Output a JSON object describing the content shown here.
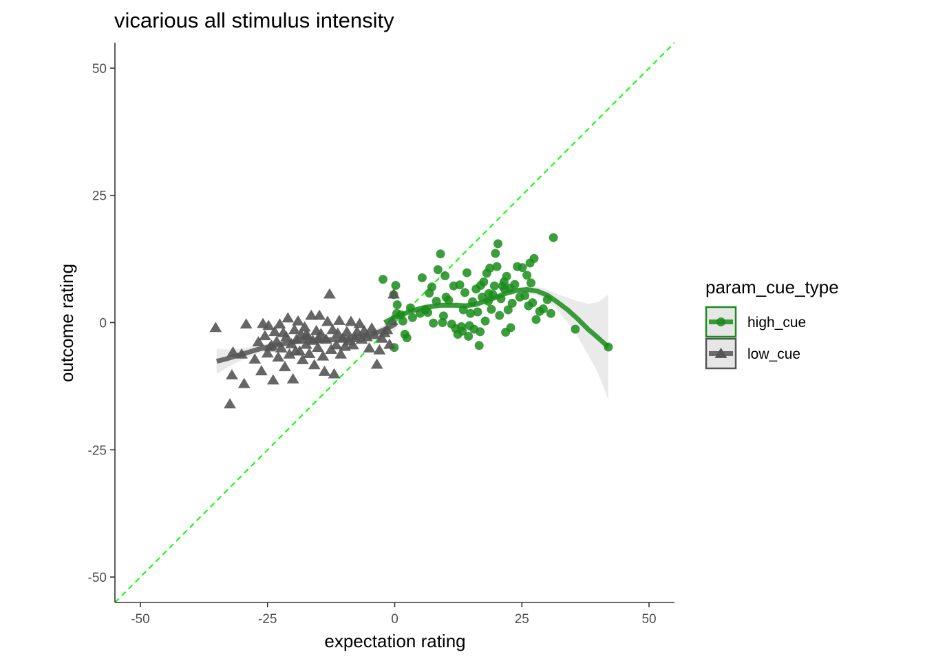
{
  "chart_data": {
    "type": "scatter",
    "title": "vicarious all stimulus intensity",
    "xlabel": "expectation rating",
    "ylabel": "outcome rating",
    "xlim": [
      -55,
      55
    ],
    "ylim": [
      -55,
      55
    ],
    "x_ticks": [
      -50,
      -25,
      0,
      25,
      50
    ],
    "y_ticks": [
      -50,
      -25,
      0,
      25,
      50
    ],
    "x_tick_labels": [
      "-50",
      "-25",
      "0",
      "25",
      "50"
    ],
    "y_tick_labels": [
      "-50",
      "-25",
      "0",
      "25",
      "50"
    ],
    "grid": false,
    "legend": {
      "title": "param_cue_type",
      "position": "right"
    },
    "identity_line": {
      "type": "dashed",
      "color": "#00ff00",
      "slope": 1,
      "intercept": 0
    },
    "series": [
      {
        "name": "high_cue",
        "marker": "circle",
        "color": "#1a8c1a",
        "points": [
          [
            -2.3,
            8.5
          ],
          [
            0.2,
            7.3
          ],
          [
            -0.2,
            5.5
          ],
          [
            0.5,
            3.5
          ],
          [
            0.4,
            1.8
          ],
          [
            1.2,
            1.5
          ],
          [
            1.6,
            0.3
          ],
          [
            2.0,
            -2.3
          ],
          [
            2.4,
            -3.0
          ],
          [
            3.1,
            2.9
          ],
          [
            3.5,
            1.0
          ],
          [
            5.0,
            1.8
          ],
          [
            5.4,
            8.8
          ],
          [
            6.0,
            2.5
          ],
          [
            6.8,
            5.8
          ],
          [
            7.3,
            7.0
          ],
          [
            7.6,
            -0.1
          ],
          [
            8.2,
            4.2
          ],
          [
            8.5,
            10.4
          ],
          [
            9.0,
            13.5
          ],
          [
            9.4,
            0.0
          ],
          [
            9.9,
            9.2
          ],
          [
            10.1,
            5.0
          ],
          [
            10.6,
            4.4
          ],
          [
            11.2,
            -0.3
          ],
          [
            11.6,
            7.2
          ],
          [
            12.0,
            -1.2
          ],
          [
            12.4,
            -2.3
          ],
          [
            12.8,
            7.4
          ],
          [
            13.1,
            -0.8
          ],
          [
            13.5,
            2.5
          ],
          [
            13.8,
            5.9
          ],
          [
            14.2,
            9.8
          ],
          [
            14.5,
            -2.7
          ],
          [
            14.9,
            1.8
          ],
          [
            15.3,
            4.1
          ],
          [
            15.6,
            -1.3
          ],
          [
            16.0,
            6.6
          ],
          [
            16.3,
            2.1
          ],
          [
            16.6,
            -4.5
          ],
          [
            16.9,
            7.3
          ],
          [
            17.2,
            5.0
          ],
          [
            17.5,
            8.0
          ],
          [
            17.8,
            0.3
          ],
          [
            18.1,
            9.7
          ],
          [
            18.4,
            4.2
          ],
          [
            18.7,
            10.7
          ],
          [
            19.0,
            2.6
          ],
          [
            19.3,
            5.5
          ],
          [
            19.6,
            7.2
          ],
          [
            19.8,
            13.6
          ],
          [
            20.1,
            11.0
          ],
          [
            20.3,
            15.5
          ],
          [
            20.6,
            1.4
          ],
          [
            20.9,
            4.7
          ],
          [
            21.2,
            7.2
          ],
          [
            21.5,
            8.0
          ],
          [
            21.8,
            -1.9
          ],
          [
            22.0,
            9.1
          ],
          [
            22.3,
            2.5
          ],
          [
            22.6,
            6.8
          ],
          [
            22.8,
            -1.0
          ],
          [
            23.1,
            3.8
          ],
          [
            23.6,
            7.5
          ],
          [
            24.1,
            11.0
          ],
          [
            24.6,
            5.0
          ],
          [
            25.1,
            10.8
          ],
          [
            25.6,
            5.3
          ],
          [
            26.0,
            9.3
          ],
          [
            26.3,
            3.3
          ],
          [
            26.6,
            11.7
          ],
          [
            26.8,
            7.8
          ],
          [
            27.1,
            3.9
          ],
          [
            27.4,
            12.6
          ],
          [
            27.8,
            0.6
          ],
          [
            28.5,
            2.2
          ],
          [
            29.2,
            2.7
          ],
          [
            30.0,
            4.5
          ],
          [
            30.7,
            1.8
          ],
          [
            31.2,
            16.7
          ],
          [
            35.5,
            -1.3
          ],
          [
            42.0,
            -4.8
          ],
          [
            -0.1,
            -4.9
          ],
          [
            21.6,
            6.6
          ],
          [
            18.5,
            5.7
          ],
          [
            16.8,
            -1.8
          ],
          [
            14.7,
            -0.6
          ],
          [
            13.3,
            -1.7
          ],
          [
            9.6,
            1.3
          ],
          [
            6.5,
            2.0
          ]
        ],
        "smooth": [
          [
            -2,
            0.0
          ],
          [
            0,
            1.0
          ],
          [
            3,
            2.2
          ],
          [
            6,
            3.0
          ],
          [
            9,
            3.4
          ],
          [
            12,
            3.4
          ],
          [
            14,
            3.3
          ],
          [
            16,
            3.6
          ],
          [
            18,
            4.3
          ],
          [
            20,
            5.0
          ],
          [
            22,
            5.8
          ],
          [
            24,
            6.3
          ],
          [
            26,
            6.5
          ],
          [
            28,
            6.2
          ],
          [
            30,
            5.4
          ],
          [
            32,
            4.0
          ],
          [
            34,
            2.5
          ],
          [
            36,
            0.7
          ],
          [
            38,
            -1.3
          ],
          [
            40,
            -3.0
          ],
          [
            42,
            -4.8
          ]
        ],
        "smooth_band_halfwidth": [
          0.9,
          0.7,
          0.6,
          0.6,
          0.6,
          0.6,
          0.6,
          0.6,
          0.6,
          0.6,
          0.6,
          0.6,
          0.7,
          0.8,
          1.1,
          1.6,
          2.4,
          3.5,
          5.0,
          7.0,
          10.3
        ]
      },
      {
        "name": "low_cue",
        "marker": "triangle",
        "color": "#555555",
        "points": [
          [
            -35.2,
            -1.0
          ],
          [
            -32.4,
            -16.0
          ],
          [
            -32.0,
            -10.3
          ],
          [
            -31.8,
            -5.8
          ],
          [
            -30.1,
            -6.2
          ],
          [
            -29.6,
            -12.0
          ],
          [
            -29.2,
            -0.3
          ],
          [
            -27.5,
            -7.2
          ],
          [
            -26.8,
            -3.8
          ],
          [
            -26.2,
            -9.5
          ],
          [
            -25.9,
            -0.2
          ],
          [
            -25.5,
            -2.6
          ],
          [
            -25.0,
            -6.0
          ],
          [
            -24.8,
            -0.6
          ],
          [
            -24.2,
            -4.5
          ],
          [
            -23.9,
            -11.3
          ],
          [
            -23.6,
            -1.8
          ],
          [
            -23.2,
            -3.7
          ],
          [
            -22.9,
            -6.8
          ],
          [
            -22.6,
            -0.3
          ],
          [
            -22.3,
            -5.0
          ],
          [
            -21.9,
            -2.0
          ],
          [
            -21.6,
            -8.7
          ],
          [
            -21.3,
            -2.8
          ],
          [
            -21.0,
            0.9
          ],
          [
            -20.7,
            -6.2
          ],
          [
            -20.3,
            -4.2
          ],
          [
            -20.0,
            -11.1
          ],
          [
            -19.7,
            -1.4
          ],
          [
            -19.3,
            -3.3
          ],
          [
            -19.0,
            0.3
          ],
          [
            -18.7,
            -5.6
          ],
          [
            -18.4,
            -2.4
          ],
          [
            -18.1,
            -7.3
          ],
          [
            -17.7,
            -0.9
          ],
          [
            -17.4,
            -4.3
          ],
          [
            -17.1,
            -2.6
          ],
          [
            -16.8,
            -6.1
          ],
          [
            -16.4,
            1.4
          ],
          [
            -16.1,
            -3.5
          ],
          [
            -15.8,
            -8.3
          ],
          [
            -15.4,
            -1.6
          ],
          [
            -15.1,
            -4.9
          ],
          [
            -14.8,
            1.4
          ],
          [
            -14.5,
            -2.2
          ],
          [
            -14.1,
            -6.6
          ],
          [
            -13.8,
            -9.6
          ],
          [
            -13.5,
            -3.3
          ],
          [
            -13.2,
            0.2
          ],
          [
            -12.8,
            5.6
          ],
          [
            -12.5,
            -5.3
          ],
          [
            -12.2,
            -1.4
          ],
          [
            -11.9,
            -10.1
          ],
          [
            -11.5,
            -4.4
          ],
          [
            -11.2,
            -2.1
          ],
          [
            -10.9,
            0.4
          ],
          [
            -10.6,
            -6.2
          ],
          [
            -10.2,
            -3.1
          ],
          [
            -9.8,
            -4.7
          ],
          [
            -9.4,
            -1.8
          ],
          [
            -9.0,
            -3.6
          ],
          [
            -8.6,
            0.2
          ],
          [
            -8.2,
            -4.4
          ],
          [
            -7.8,
            -3.0
          ],
          [
            -7.4,
            -1.8
          ],
          [
            -6.9,
            -0.2
          ],
          [
            -6.5,
            -3.3
          ],
          [
            -6.0,
            -1.6
          ],
          [
            -5.5,
            -2.8
          ],
          [
            -5.0,
            -5.0
          ],
          [
            -4.5,
            -1.1
          ],
          [
            -4.0,
            -2.4
          ],
          [
            -3.5,
            -8.2
          ],
          [
            -3.0,
            -5.4
          ],
          [
            -2.5,
            -3.1
          ],
          [
            -2.0,
            -2.0
          ],
          [
            -1.5,
            -1.4
          ],
          [
            -1.0,
            -4.3
          ],
          [
            -0.5,
            0.4
          ],
          [
            -0.2,
            5.6
          ],
          [
            -17.5,
            -2.5
          ],
          [
            -24.5,
            -4.8
          ],
          [
            -19.5,
            -5.6
          ],
          [
            -15.0,
            -3.2
          ]
        ],
        "smooth": [
          [
            -35.0,
            -7.6
          ],
          [
            -33,
            -7.1
          ],
          [
            -31,
            -6.5
          ],
          [
            -29,
            -5.9
          ],
          [
            -27,
            -5.3
          ],
          [
            -25,
            -4.8
          ],
          [
            -23,
            -4.4
          ],
          [
            -21,
            -4.0
          ],
          [
            -19,
            -3.7
          ],
          [
            -17,
            -3.6
          ],
          [
            -15,
            -3.5
          ],
          [
            -13,
            -3.4
          ],
          [
            -11,
            -3.3
          ],
          [
            -9,
            -3.1
          ],
          [
            -7,
            -2.8
          ],
          [
            -5,
            -2.4
          ],
          [
            -3,
            -1.8
          ],
          [
            -1,
            -0.9
          ],
          [
            0.3,
            -0.2
          ]
        ],
        "smooth_band_halfwidth": [
          2.5,
          1.8,
          1.3,
          1.0,
          0.8,
          0.7,
          0.6,
          0.6,
          0.6,
          0.6,
          0.6,
          0.6,
          0.6,
          0.6,
          0.6,
          0.7,
          0.8,
          1.0,
          1.3
        ]
      }
    ]
  }
}
